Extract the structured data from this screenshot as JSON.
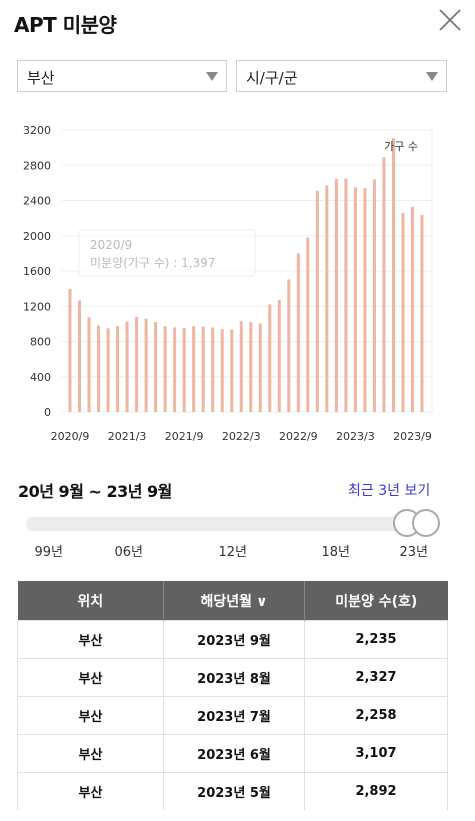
{
  "header": {
    "title": "APT 미분양"
  },
  "filters": {
    "region": "부산",
    "district": "시/구/군"
  },
  "chart_data": {
    "type": "bar",
    "legend": "가구 수",
    "legend_position": "top-right",
    "ylim": [
      0,
      3200
    ],
    "yticks": [
      "0",
      "400",
      "800",
      "1200",
      "1600",
      "2000",
      "2400",
      "2800",
      "3200"
    ],
    "xticks": [
      "2020/9",
      "2021/3",
      "2021/9",
      "2022/3",
      "2022/9",
      "2023/3",
      "2023/9"
    ],
    "color": "#f0b5a0",
    "values": [
      1397,
      1265,
      1075,
      980,
      950,
      975,
      1025,
      1080,
      1060,
      1020,
      975,
      960,
      955,
      975,
      970,
      960,
      940,
      935,
      1030,
      1020,
      1005,
      1220,
      1270,
      1505,
      1800,
      1980,
      2510,
      2570,
      2645,
      2650,
      2550,
      2540,
      2640,
      2892,
      3107,
      2258,
      2327,
      2235
    ],
    "tooltip": {
      "date": "2020/9",
      "label": "미분양(가구 수) : 1,397"
    }
  },
  "range": {
    "label": "20년 9월 ~ 23년 9월",
    "recent_link": "최근 3년 보기",
    "ticks": [
      "99년",
      "06년",
      "12년",
      "18년",
      "23년"
    ],
    "start": 0.952,
    "end": 1.0
  },
  "table": {
    "headers": [
      "위치",
      "해당년월",
      "미분양 수(호)"
    ],
    "sort_caret": "∨",
    "rows": [
      [
        "부산",
        "2023년 9월",
        "2,235"
      ],
      [
        "부산",
        "2023년 8월",
        "2,327"
      ],
      [
        "부산",
        "2023년 7월",
        "2,258"
      ],
      [
        "부산",
        "2023년 6월",
        "3,107"
      ],
      [
        "부산",
        "2023년 5월",
        "2,892"
      ]
    ]
  }
}
